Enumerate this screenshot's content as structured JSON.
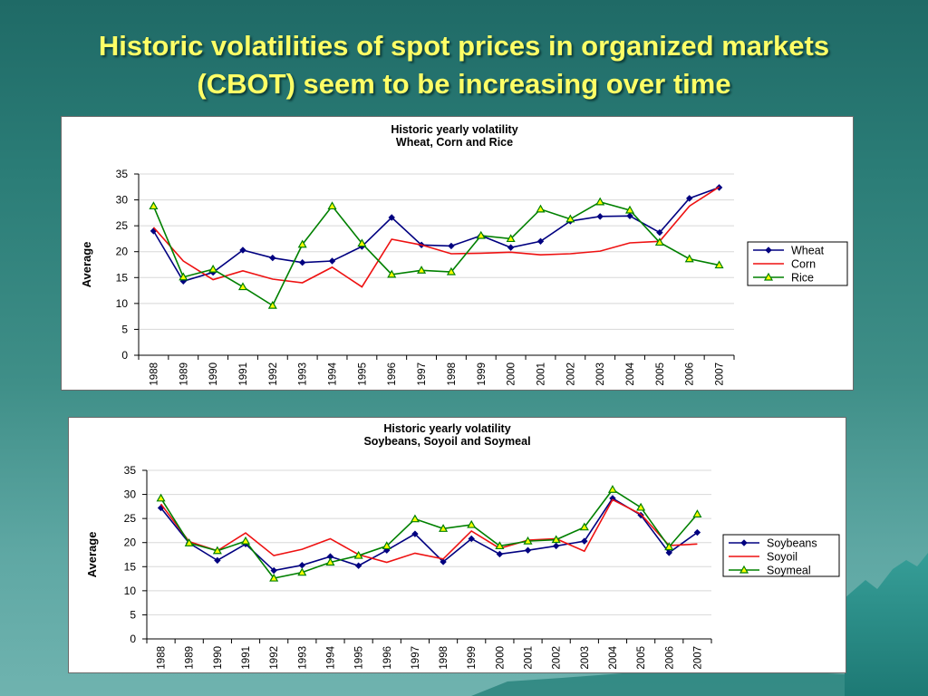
{
  "slide": {
    "title_line1": "Historic volatilities of spot prices in organized markets",
    "title_line2": "(CBOT) seem to be increasing over time"
  },
  "colors": {
    "title": "#ffff66",
    "background_top": "#1f6a66",
    "background_bottom": "#6fb3af",
    "series_navy": "#000080",
    "series_red": "#ee1111",
    "series_green": "#008000",
    "marker_fill": "#ffff00"
  },
  "chart_data": [
    {
      "type": "line",
      "title": "Historic yearly volatility",
      "subtitle": "Wheat, Corn and Rice",
      "xlabel": "",
      "ylabel": "Average",
      "ylim": [
        0,
        35
      ],
      "yticks": [
        0,
        5,
        10,
        15,
        20,
        25,
        30,
        35
      ],
      "grid": true,
      "legend_position": "right",
      "x": [
        "1988",
        "1989",
        "1990",
        "1991",
        "1992",
        "1993",
        "1994",
        "1995",
        "1996",
        "1997",
        "1998",
        "1999",
        "2000",
        "2001",
        "2002",
        "2003",
        "2004",
        "2005",
        "2006",
        "2007"
      ],
      "series": [
        {
          "name": "Wheat",
          "color": "#000080",
          "marker": "diamond",
          "values": [
            24.0,
            14.3,
            16.0,
            20.3,
            18.8,
            17.9,
            18.2,
            21.0,
            26.6,
            21.3,
            21.1,
            23.1,
            20.8,
            22.0,
            25.9,
            26.8,
            26.9,
            23.7,
            30.3,
            32.4
          ]
        },
        {
          "name": "Corn",
          "color": "#ee1111",
          "marker": "none",
          "values": [
            24.7,
            18.2,
            14.6,
            16.3,
            14.7,
            14.0,
            17.0,
            13.2,
            22.4,
            21.3,
            19.6,
            19.7,
            19.9,
            19.4,
            19.6,
            20.1,
            21.7,
            22.0,
            28.8,
            32.5
          ]
        },
        {
          "name": "Rice",
          "color": "#008000",
          "marker": "triangle",
          "values": [
            28.8,
            15.1,
            16.6,
            13.2,
            9.6,
            21.4,
            28.8,
            21.6,
            15.6,
            16.4,
            16.1,
            23.1,
            22.5,
            28.2,
            26.3,
            29.6,
            28.0,
            21.8,
            18.6,
            17.4
          ]
        }
      ]
    },
    {
      "type": "line",
      "title": "Historic yearly volatility",
      "subtitle": "Soybeans, Soyoil and Soymeal",
      "xlabel": "",
      "ylabel": "Average",
      "ylim": [
        0,
        35
      ],
      "yticks": [
        0,
        5,
        10,
        15,
        20,
        25,
        30,
        35
      ],
      "grid": true,
      "legend_position": "right",
      "x": [
        "1988",
        "1989",
        "1990",
        "1991",
        "1992",
        "1993",
        "1994",
        "1995",
        "1996",
        "1997",
        "1998",
        "1999",
        "2000",
        "2001",
        "2002",
        "2003",
        "2004",
        "2005",
        "2006",
        "2007"
      ],
      "series": [
        {
          "name": "Soybeans",
          "color": "#000080",
          "marker": "diamond",
          "values": [
            27.2,
            19.9,
            16.3,
            19.7,
            14.2,
            15.3,
            17.1,
            15.2,
            18.4,
            21.8,
            16.0,
            20.8,
            17.6,
            18.4,
            19.3,
            20.3,
            29.2,
            25.7,
            17.9,
            22.1
          ]
        },
        {
          "name": "Soyoil",
          "color": "#ee1111",
          "marker": "none",
          "values": [
            28.0,
            20.2,
            18.3,
            22.0,
            17.3,
            18.6,
            20.8,
            17.5,
            15.9,
            17.8,
            16.6,
            22.4,
            18.8,
            20.5,
            20.8,
            18.2,
            28.9,
            25.9,
            19.4,
            19.7
          ]
        },
        {
          "name": "Soymeal",
          "color": "#008000",
          "marker": "triangle",
          "values": [
            29.2,
            19.9,
            18.3,
            20.3,
            12.6,
            13.8,
            15.9,
            17.3,
            19.3,
            24.9,
            22.9,
            23.7,
            19.3,
            20.3,
            20.6,
            23.2,
            31.0,
            27.3,
            19.1,
            25.9
          ]
        }
      ]
    }
  ]
}
